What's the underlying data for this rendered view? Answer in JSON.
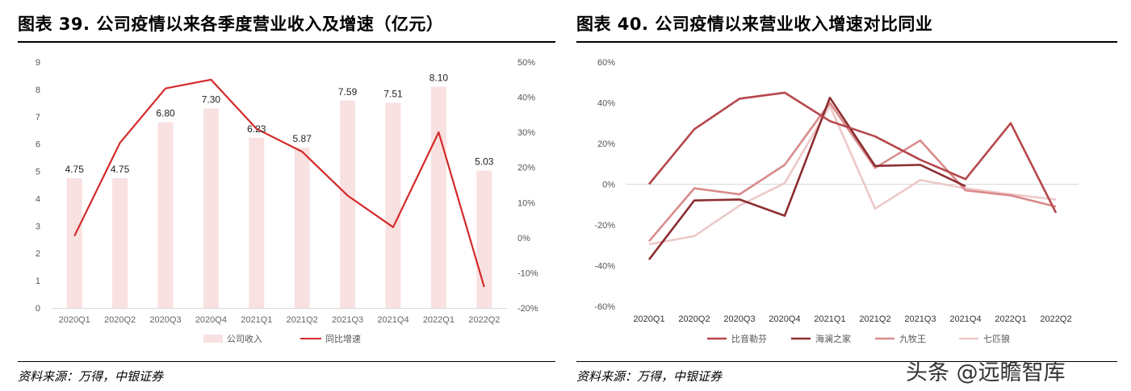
{
  "chart_data": [
    {
      "type": "bar",
      "title": "图表 39. 公司疫情以来各季度营业收入及增速（亿元）",
      "categories": [
        "2020Q1",
        "2020Q2",
        "2020Q3",
        "2020Q4",
        "2021Q1",
        "2021Q2",
        "2021Q3",
        "2021Q4",
        "2022Q1",
        "2022Q2"
      ],
      "series": [
        {
          "name": "公司收入",
          "type": "bar",
          "axis": "left",
          "color": "#F9E1E1",
          "values": [
            4.75,
            4.75,
            6.8,
            7.3,
            6.23,
            5.87,
            7.59,
            7.51,
            8.1,
            5.03
          ],
          "labels": [
            "4.75",
            "4.75",
            "6.80",
            "7.30",
            "6.23",
            "5.87",
            "7.59",
            "7.51",
            "8.10",
            "5.03"
          ]
        },
        {
          "name": "同比增速",
          "type": "line",
          "axis": "right",
          "color": "#D42A2A",
          "values": [
            0.5,
            27,
            42.5,
            45,
            31,
            24.5,
            12,
            3,
            30,
            -14
          ]
        }
      ],
      "y_left": {
        "range": [
          0,
          9
        ],
        "ticks": [
          "0",
          "1",
          "2",
          "3",
          "4",
          "5",
          "6",
          "7",
          "8",
          "9"
        ]
      },
      "y_right": {
        "range": [
          -20,
          50
        ],
        "ticks": [
          "-20%",
          "-10%",
          "0%",
          "10%",
          "20%",
          "30%",
          "40%",
          "50%"
        ]
      },
      "legend_position": "bottom",
      "source": "资料来源：万得，中银证券"
    },
    {
      "type": "line",
      "title": "图表 40. 公司疫情以来营业收入增速对比同业",
      "categories": [
        "2020Q1",
        "2020Q2",
        "2020Q3",
        "2020Q4",
        "2021Q1",
        "2021Q2",
        "2021Q3",
        "2021Q4",
        "2022Q1",
        "2022Q2"
      ],
      "series": [
        {
          "name": "比音勒芬",
          "color": "#B5474B",
          "values": [
            0,
            27,
            42,
            45,
            31,
            23.5,
            12,
            2.5,
            30,
            -14
          ]
        },
        {
          "name": "海澜之家",
          "color": "#8C2E32",
          "values": [
            -37,
            -8,
            -7.5,
            -15.5,
            42.5,
            9,
            9.5,
            -1,
            null,
            null
          ]
        },
        {
          "name": "九牧王",
          "color": "#D98B8C",
          "values": [
            -28,
            -2,
            -5,
            9.5,
            40,
            8,
            21.5,
            -3,
            -5.5,
            -11
          ]
        },
        {
          "name": "七匹狼",
          "color": "#EDC9C9",
          "values": [
            -29.5,
            -25.5,
            -10.5,
            0.5,
            38.5,
            -12,
            2,
            -2,
            -5,
            -7.5
          ]
        }
      ],
      "y_range": [
        -60,
        60
      ],
      "y_ticks": [
        "-60%",
        "-40%",
        "-20%",
        "0%",
        "20%",
        "40%",
        "60%"
      ],
      "legend_position": "bottom",
      "source": "资料来源：万得，中银证券"
    }
  ],
  "watermark": "头条 @远瞻智库"
}
